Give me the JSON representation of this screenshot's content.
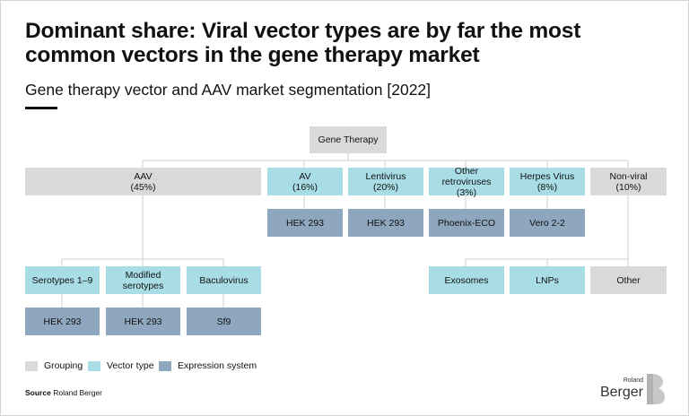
{
  "title": "Dominant share: Viral vector types are by far the most common vectors in the gene therapy market",
  "subtitle": "Gene therapy vector and AAV market segmentation [2022]",
  "root": {
    "label": "Gene Therapy"
  },
  "segments": [
    {
      "name": "AAV",
      "share": "(45%)"
    },
    {
      "name": "AV",
      "share": "(16%)"
    },
    {
      "name": "Lentivirus",
      "share": "(20%)"
    },
    {
      "name": "Other retroviruses",
      "share": "(3%)"
    },
    {
      "name": "Herpes Virus",
      "share": "(8%)"
    },
    {
      "name": "Non-viral",
      "share": "(10%)"
    }
  ],
  "expression_row1": [
    "HEK 293",
    "HEK 293",
    "Phoenix-ECO",
    "Vero 2-2"
  ],
  "aav_subtypes": [
    {
      "label": "Serotypes 1–9",
      "expression": "HEK 293"
    },
    {
      "label": "Modified serotypes",
      "expression": "HEK 293"
    },
    {
      "label": "Baculovirus",
      "expression": "Sf9"
    }
  ],
  "nonviral_subtypes": [
    "Exosomes",
    "LNPs",
    "Other"
  ],
  "legend": {
    "grouping": "Grouping",
    "vector_type": "Vector type",
    "expression_system": "Expression system"
  },
  "colors": {
    "grouping": "#d9d9d9",
    "vector_type": "#a8dde6",
    "expression_system": "#8ea7bf",
    "connector": "#cfcfcf"
  },
  "source": {
    "label": "Source",
    "text": "Roland Berger"
  },
  "logo": {
    "small": "Roland",
    "big": "Berger"
  }
}
